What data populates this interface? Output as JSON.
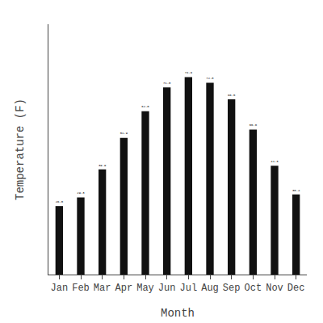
{
  "chart_data": {
    "type": "bar",
    "categories": [
      "Jan",
      "Feb",
      "Mar",
      "Apr",
      "May",
      "Jun",
      "Jul",
      "Aug",
      "Sep",
      "Oct",
      "Nov",
      "Dec"
    ],
    "values": [
      26.0,
      29.3,
      39.9,
      51.9,
      62.0,
      71.0,
      74.9,
      72.8,
      66.5,
      55.0,
      41.3,
      30.4
    ],
    "value_labels": [
      "26.0",
      "29.3",
      "39.9",
      "51.9",
      "62.0",
      "71.0",
      "74.9",
      "72.8",
      "66.5",
      "55.0",
      "41.3",
      "30.4"
    ],
    "color": "#111111",
    "xlabel": "Month",
    "ylabel": "Temperature (F)",
    "ylim": [
      0,
      95
    ],
    "data_labels": true,
    "tick_labels": "x",
    "grid": false
  }
}
